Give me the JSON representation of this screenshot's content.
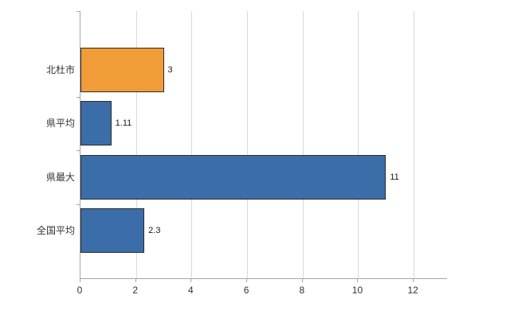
{
  "chart_data": {
    "type": "bar",
    "orientation": "horizontal",
    "title": "",
    "xlabel": "",
    "ylabel": "",
    "categories": [
      "北杜市",
      "県平均",
      "県最大",
      "全国平均"
    ],
    "values": [
      3,
      1.11,
      11,
      2.3
    ],
    "value_labels": [
      "3",
      "1.11",
      "11",
      "2.3"
    ],
    "colors": [
      "#F09C38",
      "#3B6EA8",
      "#3B6EA8",
      "#3B6EA8"
    ],
    "bar_border_color": "#2b2b2b",
    "xlim": [
      0,
      13.2
    ],
    "xticks": [
      0,
      2,
      4,
      6,
      8,
      10,
      12
    ],
    "grid": true,
    "gridline_color": "#d9d9d9",
    "axis_color": "#a6a6a6",
    "legend": "none",
    "background": "#ffffff"
  }
}
